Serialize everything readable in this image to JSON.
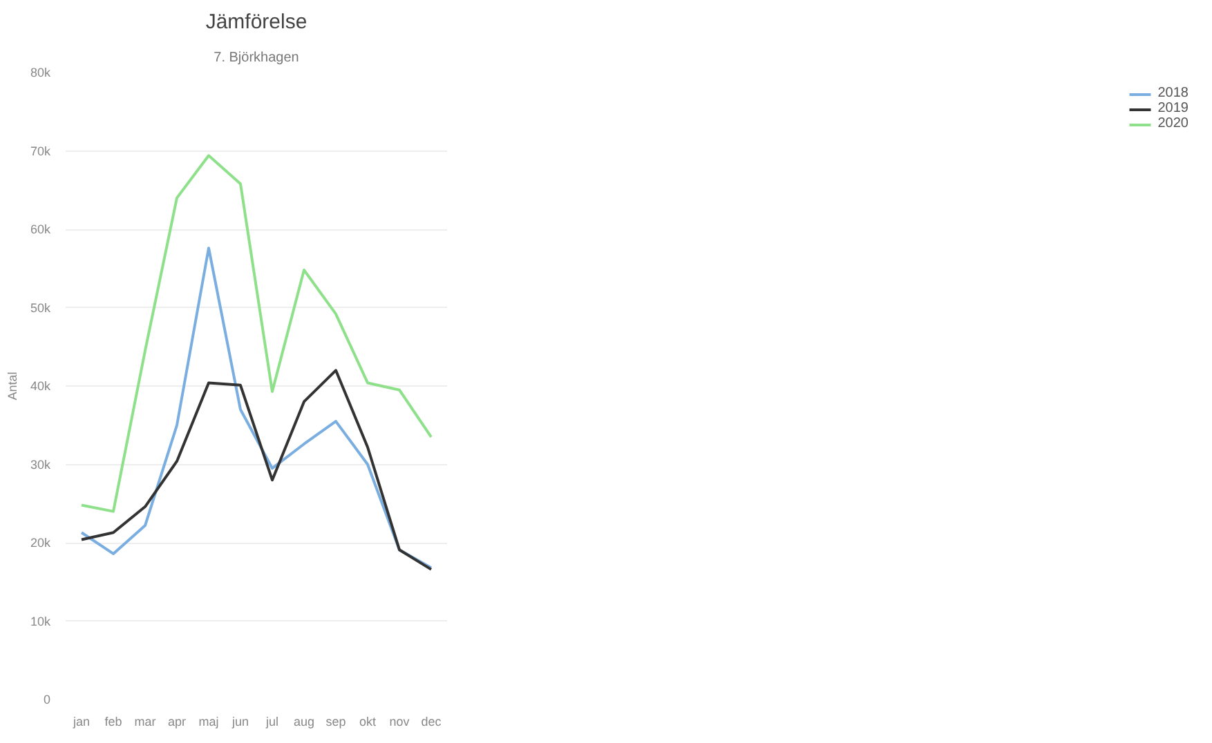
{
  "chart_data": {
    "type": "line",
    "title": "Jämförelse",
    "subtitle": "7. Björkhagen",
    "ylabel": "Antal",
    "categories": [
      "jan",
      "feb",
      "mar",
      "apr",
      "maj",
      "jun",
      "jul",
      "aug",
      "sep",
      "okt",
      "nov",
      "dec"
    ],
    "series": [
      {
        "name": "2018",
        "color": "#7aaee0",
        "values": [
          21300,
          18600,
          22200,
          35000,
          57600,
          37000,
          29500,
          32600,
          35500,
          30000,
          19100,
          16800
        ]
      },
      {
        "name": "2019",
        "color": "#333333",
        "values": [
          20400,
          21300,
          24600,
          30400,
          40400,
          40100,
          28000,
          38000,
          42000,
          32200,
          19100,
          16600
        ]
      },
      {
        "name": "2020",
        "color": "#8fe08a",
        "values": [
          24800,
          24000,
          44500,
          64000,
          69400,
          65800,
          39300,
          54800,
          49200,
          40400,
          39500,
          33500
        ]
      }
    ],
    "ylim": [
      0,
      80000
    ],
    "yticks": [
      {
        "value": 0,
        "label": "0"
      },
      {
        "value": 10000,
        "label": "10k"
      },
      {
        "value": 20000,
        "label": "20k"
      },
      {
        "value": 30000,
        "label": "30k"
      },
      {
        "value": 40000,
        "label": "40k"
      },
      {
        "value": 50000,
        "label": "50k"
      },
      {
        "value": 60000,
        "label": "60k"
      },
      {
        "value": 70000,
        "label": "70k"
      },
      {
        "value": 80000,
        "label": "80k"
      }
    ],
    "grid": "y",
    "legend": "top right",
    "line_style": "solid",
    "marker": "none"
  }
}
